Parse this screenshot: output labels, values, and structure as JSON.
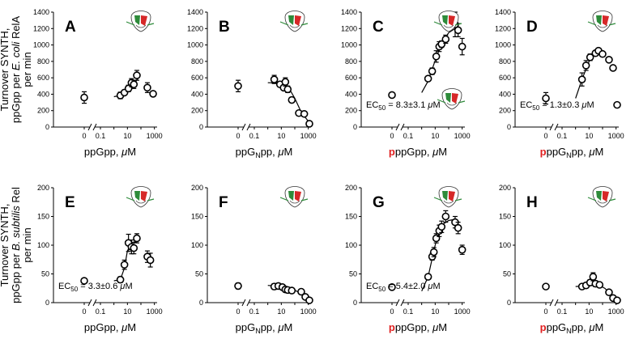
{
  "y_labels": [
    [
      "Turnover SYNTH,",
      "ppGpp per E. coli RelA",
      "per min"
    ],
    [
      "Turnover SYNTH,",
      "ppGpp per B. subtilis Rel",
      "per min"
    ]
  ],
  "chart_data": [
    {
      "type": "scatter",
      "letter": "A",
      "row": 0,
      "col": 0,
      "xlabel": "ppGpp, μM",
      "xlabel_prefix": "",
      "ylim": [
        0,
        1400
      ],
      "yticks": [
        0,
        200,
        400,
        600,
        800,
        1000,
        1200,
        1400
      ],
      "zero_point": {
        "y": 360,
        "err": 70
      },
      "points": [
        {
          "x": 3,
          "y": 385,
          "err": 40
        },
        {
          "x": 6,
          "y": 420,
          "err": 30
        },
        {
          "x": 12,
          "y": 470,
          "err": 40
        },
        {
          "x": 20,
          "y": 540,
          "err": 50
        },
        {
          "x": 30,
          "y": 520,
          "err": 50
        },
        {
          "x": 50,
          "y": 630,
          "err": 60
        },
        {
          "x": 300,
          "y": 480,
          "err": 60
        },
        {
          "x": 800,
          "y": 405,
          "err": 30
        }
      ],
      "fit": [
        [
          1,
          370
        ],
        [
          3,
          385
        ],
        [
          10,
          430
        ],
        [
          30,
          520
        ],
        [
          60,
          590
        ]
      ],
      "ec50": ""
    },
    {
      "type": "scatter",
      "letter": "B",
      "row": 0,
      "col": 1,
      "xlabel": "ppGNpp, μM",
      "xlabel_prefix": "",
      "ylim": [
        0,
        1400
      ],
      "yticks": [
        0,
        200,
        400,
        600,
        800,
        1000,
        1200,
        1400
      ],
      "zero_point": {
        "y": 500,
        "err": 70
      },
      "points": [
        {
          "x": 3,
          "y": 580,
          "err": 50
        },
        {
          "x": 8,
          "y": 520,
          "err": 30
        },
        {
          "x": 15,
          "y": 480,
          "err": 30
        },
        {
          "x": 20,
          "y": 550,
          "err": 50
        },
        {
          "x": 30,
          "y": 460,
          "err": 40
        },
        {
          "x": 60,
          "y": 330,
          "err": 30
        },
        {
          "x": 200,
          "y": 170,
          "err": 20
        },
        {
          "x": 500,
          "y": 160,
          "err": 20
        },
        {
          "x": 1200,
          "y": 40,
          "err": 10
        }
      ],
      "fit": [
        [
          1,
          540
        ],
        [
          10,
          535
        ],
        [
          30,
          500
        ],
        [
          100,
          350
        ],
        [
          300,
          180
        ],
        [
          1000,
          70
        ],
        [
          1400,
          55
        ]
      ],
      "ec50": ""
    },
    {
      "type": "scatter",
      "letter": "C",
      "row": 0,
      "col": 2,
      "xlabel": "ppGpp, μM",
      "xlabel_prefix": "p",
      "ylim": [
        0,
        1400
      ],
      "yticks": [
        0,
        200,
        400,
        600,
        800,
        1000,
        1200,
        1400
      ],
      "zero_point": {
        "y": 390,
        "err": 20
      },
      "points": [
        {
          "x": 3,
          "y": 590,
          "err": 30
        },
        {
          "x": 6,
          "y": 680,
          "err": 40
        },
        {
          "x": 12,
          "y": 860,
          "err": 70
        },
        {
          "x": 20,
          "y": 980,
          "err": 60
        },
        {
          "x": 30,
          "y": 1010,
          "err": 40
        },
        {
          "x": 60,
          "y": 1070,
          "err": 50
        },
        {
          "x": 300,
          "y": 1250,
          "err": 150
        },
        {
          "x": 500,
          "y": 1180,
          "err": 80
        },
        {
          "x": 1000,
          "y": 980,
          "err": 100
        }
      ],
      "fit": [
        [
          1,
          420
        ],
        [
          3,
          560
        ],
        [
          10,
          810
        ],
        [
          30,
          1020
        ],
        [
          100,
          1150
        ],
        [
          300,
          1200
        ]
      ],
      "ec50": "EC50 = 8.3±3.1 μM"
    },
    {
      "type": "scatter",
      "letter": "D",
      "row": 0,
      "col": 3,
      "xlabel": "ppGNpp, μM",
      "xlabel_prefix": "p",
      "ylim": [
        0,
        1400
      ],
      "yticks": [
        0,
        200,
        400,
        600,
        800,
        1000,
        1200,
        1400
      ],
      "zero_point": {
        "y": 350,
        "err": 70
      },
      "points": [
        {
          "x": 3,
          "y": 580,
          "err": 80
        },
        {
          "x": 6,
          "y": 750,
          "err": 60
        },
        {
          "x": 12,
          "y": 850,
          "err": 40
        },
        {
          "x": 30,
          "y": 900,
          "err": 30
        },
        {
          "x": 50,
          "y": 930,
          "err": 30
        },
        {
          "x": 100,
          "y": 890,
          "err": 30
        },
        {
          "x": 300,
          "y": 820,
          "err": 30
        },
        {
          "x": 600,
          "y": 720,
          "err": 30
        },
        {
          "x": 1200,
          "y": 270,
          "err": 20
        }
      ],
      "fit": [
        [
          1,
          350
        ],
        [
          3,
          580
        ],
        [
          10,
          800
        ],
        [
          30,
          900
        ],
        [
          80,
          940
        ]
      ],
      "ec50": "EC50 = 1.3±0.3 μM"
    },
    {
      "type": "scatter",
      "letter": "E",
      "row": 1,
      "col": 0,
      "xlabel": "ppGpp, μM",
      "xlabel_prefix": "",
      "ylim": [
        0,
        200
      ],
      "yticks": [
        0,
        50,
        100,
        150,
        200
      ],
      "zero_point": {
        "y": 38,
        "err": 3
      },
      "points": [
        {
          "x": 3,
          "y": 40,
          "err": 5
        },
        {
          "x": 6,
          "y": 66,
          "err": 8
        },
        {
          "x": 12,
          "y": 104,
          "err": 15
        },
        {
          "x": 20,
          "y": 97,
          "err": 12
        },
        {
          "x": 30,
          "y": 95,
          "err": 10
        },
        {
          "x": 50,
          "y": 112,
          "err": 8
        },
        {
          "x": 300,
          "y": 80,
          "err": 10
        },
        {
          "x": 500,
          "y": 74,
          "err": 12
        }
      ],
      "fit": [
        [
          1,
          38
        ],
        [
          3,
          40
        ],
        [
          6,
          60
        ],
        [
          10,
          90
        ],
        [
          20,
          104
        ],
        [
          60,
          108
        ]
      ],
      "ec50": "EC50 = 3.3±0.6 μM"
    },
    {
      "type": "scatter",
      "letter": "F",
      "row": 1,
      "col": 1,
      "xlabel": "ppGNpp, μM",
      "xlabel_prefix": "",
      "ylim": [
        0,
        200
      ],
      "yticks": [
        0,
        50,
        100,
        150,
        200
      ],
      "zero_point": {
        "y": 29,
        "err": 5
      },
      "points": [
        {
          "x": 3,
          "y": 28,
          "err": 5
        },
        {
          "x": 6,
          "y": 29,
          "err": 4
        },
        {
          "x": 12,
          "y": 27,
          "err": 4
        },
        {
          "x": 20,
          "y": 23,
          "err": 4
        },
        {
          "x": 30,
          "y": 22,
          "err": 4
        },
        {
          "x": 60,
          "y": 21,
          "err": 4
        },
        {
          "x": 300,
          "y": 19,
          "err": 4
        },
        {
          "x": 600,
          "y": 10,
          "err": 3
        },
        {
          "x": 1200,
          "y": 4,
          "err": 2
        }
      ],
      "fit": [
        [
          1,
          30
        ],
        [
          10,
          28
        ],
        [
          50,
          25
        ],
        [
          200,
          18
        ],
        [
          600,
          10
        ],
        [
          1400,
          5
        ]
      ],
      "ec50": ""
    },
    {
      "type": "scatter",
      "letter": "G",
      "row": 1,
      "col": 2,
      "xlabel": "ppGpp, μM",
      "xlabel_prefix": "p",
      "ylim": [
        0,
        200
      ],
      "yticks": [
        0,
        50,
        100,
        150,
        200
      ],
      "zero_point": {
        "y": 27,
        "err": 3
      },
      "points": [
        {
          "x": 3,
          "y": 45,
          "err": 4
        },
        {
          "x": 6,
          "y": 80,
          "err": 6
        },
        {
          "x": 8,
          "y": 88,
          "err": 8
        },
        {
          "x": 12,
          "y": 112,
          "err": 8
        },
        {
          "x": 20,
          "y": 125,
          "err": 10
        },
        {
          "x": 30,
          "y": 132,
          "err": 10
        },
        {
          "x": 60,
          "y": 150,
          "err": 10
        },
        {
          "x": 300,
          "y": 140,
          "err": 10
        },
        {
          "x": 500,
          "y": 130,
          "err": 10
        },
        {
          "x": 1000,
          "y": 92,
          "err": 8
        }
      ],
      "fit": [
        [
          1,
          20
        ],
        [
          3,
          45
        ],
        [
          10,
          100
        ],
        [
          30,
          135
        ],
        [
          100,
          143
        ],
        [
          300,
          145
        ]
      ],
      "ec50": "EC50 = 5.4±2.0 μM"
    },
    {
      "type": "scatter",
      "letter": "H",
      "row": 1,
      "col": 3,
      "xlabel": "ppGNpp, μM",
      "xlabel_prefix": "p",
      "ylim": [
        0,
        200
      ],
      "yticks": [
        0,
        50,
        100,
        150,
        200
      ],
      "zero_point": {
        "y": 28,
        "err": 3
      },
      "points": [
        {
          "x": 3,
          "y": 28,
          "err": 3
        },
        {
          "x": 6,
          "y": 30,
          "err": 3
        },
        {
          "x": 12,
          "y": 35,
          "err": 5
        },
        {
          "x": 20,
          "y": 45,
          "err": 7
        },
        {
          "x": 30,
          "y": 33,
          "err": 5
        },
        {
          "x": 60,
          "y": 31,
          "err": 4
        },
        {
          "x": 300,
          "y": 18,
          "err": 3
        },
        {
          "x": 600,
          "y": 8,
          "err": 2
        },
        {
          "x": 1200,
          "y": 4,
          "err": 2
        }
      ],
      "fit": [
        [
          1,
          28
        ],
        [
          10,
          30
        ],
        [
          40,
          32
        ],
        [
          150,
          25
        ],
        [
          500,
          12
        ],
        [
          1400,
          5
        ]
      ],
      "ec50": ""
    }
  ]
}
